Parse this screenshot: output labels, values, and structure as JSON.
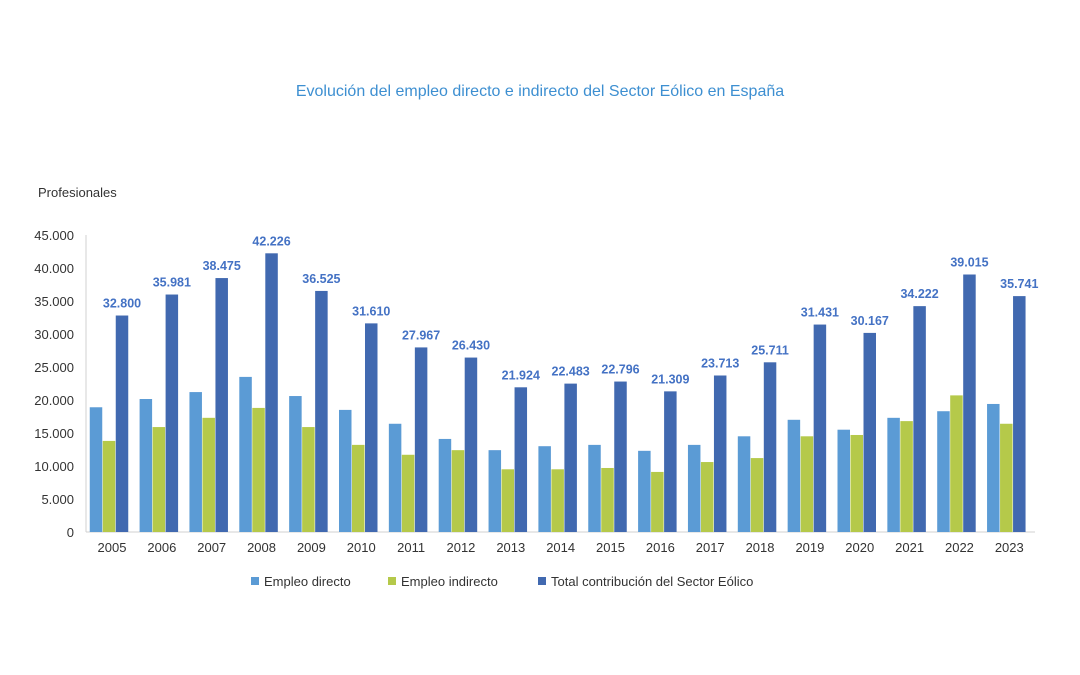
{
  "chart_data": {
    "type": "bar",
    "title": "Evolución del empleo directo e indirecto del Sector Eólico en España",
    "ylabel": "Profesionales",
    "xlabel": "",
    "ylim": [
      0,
      45000
    ],
    "yticks": [
      0,
      5000,
      10000,
      15000,
      20000,
      25000,
      30000,
      35000,
      40000,
      45000
    ],
    "ytick_labels": [
      "0",
      "5.000",
      "10.000",
      "15.000",
      "20.000",
      "25.000",
      "30.000",
      "35.000",
      "40.000",
      "45.000"
    ],
    "grid": false,
    "legend_position": "bottom",
    "categories": [
      "2005",
      "2006",
      "2007",
      "2008",
      "2009",
      "2010",
      "2011",
      "2012",
      "2013",
      "2014",
      "2015",
      "2016",
      "2017",
      "2018",
      "2019",
      "2020",
      "2021",
      "2022",
      "2023"
    ],
    "series": [
      {
        "name": "Empleo directo",
        "color": "#5b9bd5",
        "values": [
          18900,
          20150,
          21200,
          23500,
          20600,
          18500,
          16400,
          14100,
          12400,
          13000,
          13200,
          12300,
          13200,
          14500,
          17000,
          15500,
          17300,
          18300,
          19400
        ]
      },
      {
        "name": "Empleo indirecto",
        "color": "#b5c94a",
        "values": [
          13800,
          15900,
          17300,
          18800,
          15900,
          13200,
          11700,
          12400,
          9500,
          9500,
          9700,
          9100,
          10600,
          11200,
          14500,
          14700,
          16800,
          20700,
          16400
        ]
      },
      {
        "name": "Total contribución del Sector Eólico",
        "color": "#4169b0",
        "values": [
          32800,
          35981,
          38475,
          42226,
          36525,
          31610,
          27967,
          26430,
          21924,
          22483,
          22796,
          21309,
          23713,
          25711,
          31431,
          30167,
          34222,
          39015,
          35741
        ],
        "data_labels": [
          "32.800",
          "35.981",
          "38.475",
          "42.226",
          "36.525",
          "31.610",
          "27.967",
          "26.430",
          "21.924",
          "22.483",
          "22.796",
          "21.309",
          "23.713",
          "25.711",
          "31.431",
          "30.167",
          "34.222",
          "39.015",
          "35.741"
        ]
      }
    ]
  }
}
